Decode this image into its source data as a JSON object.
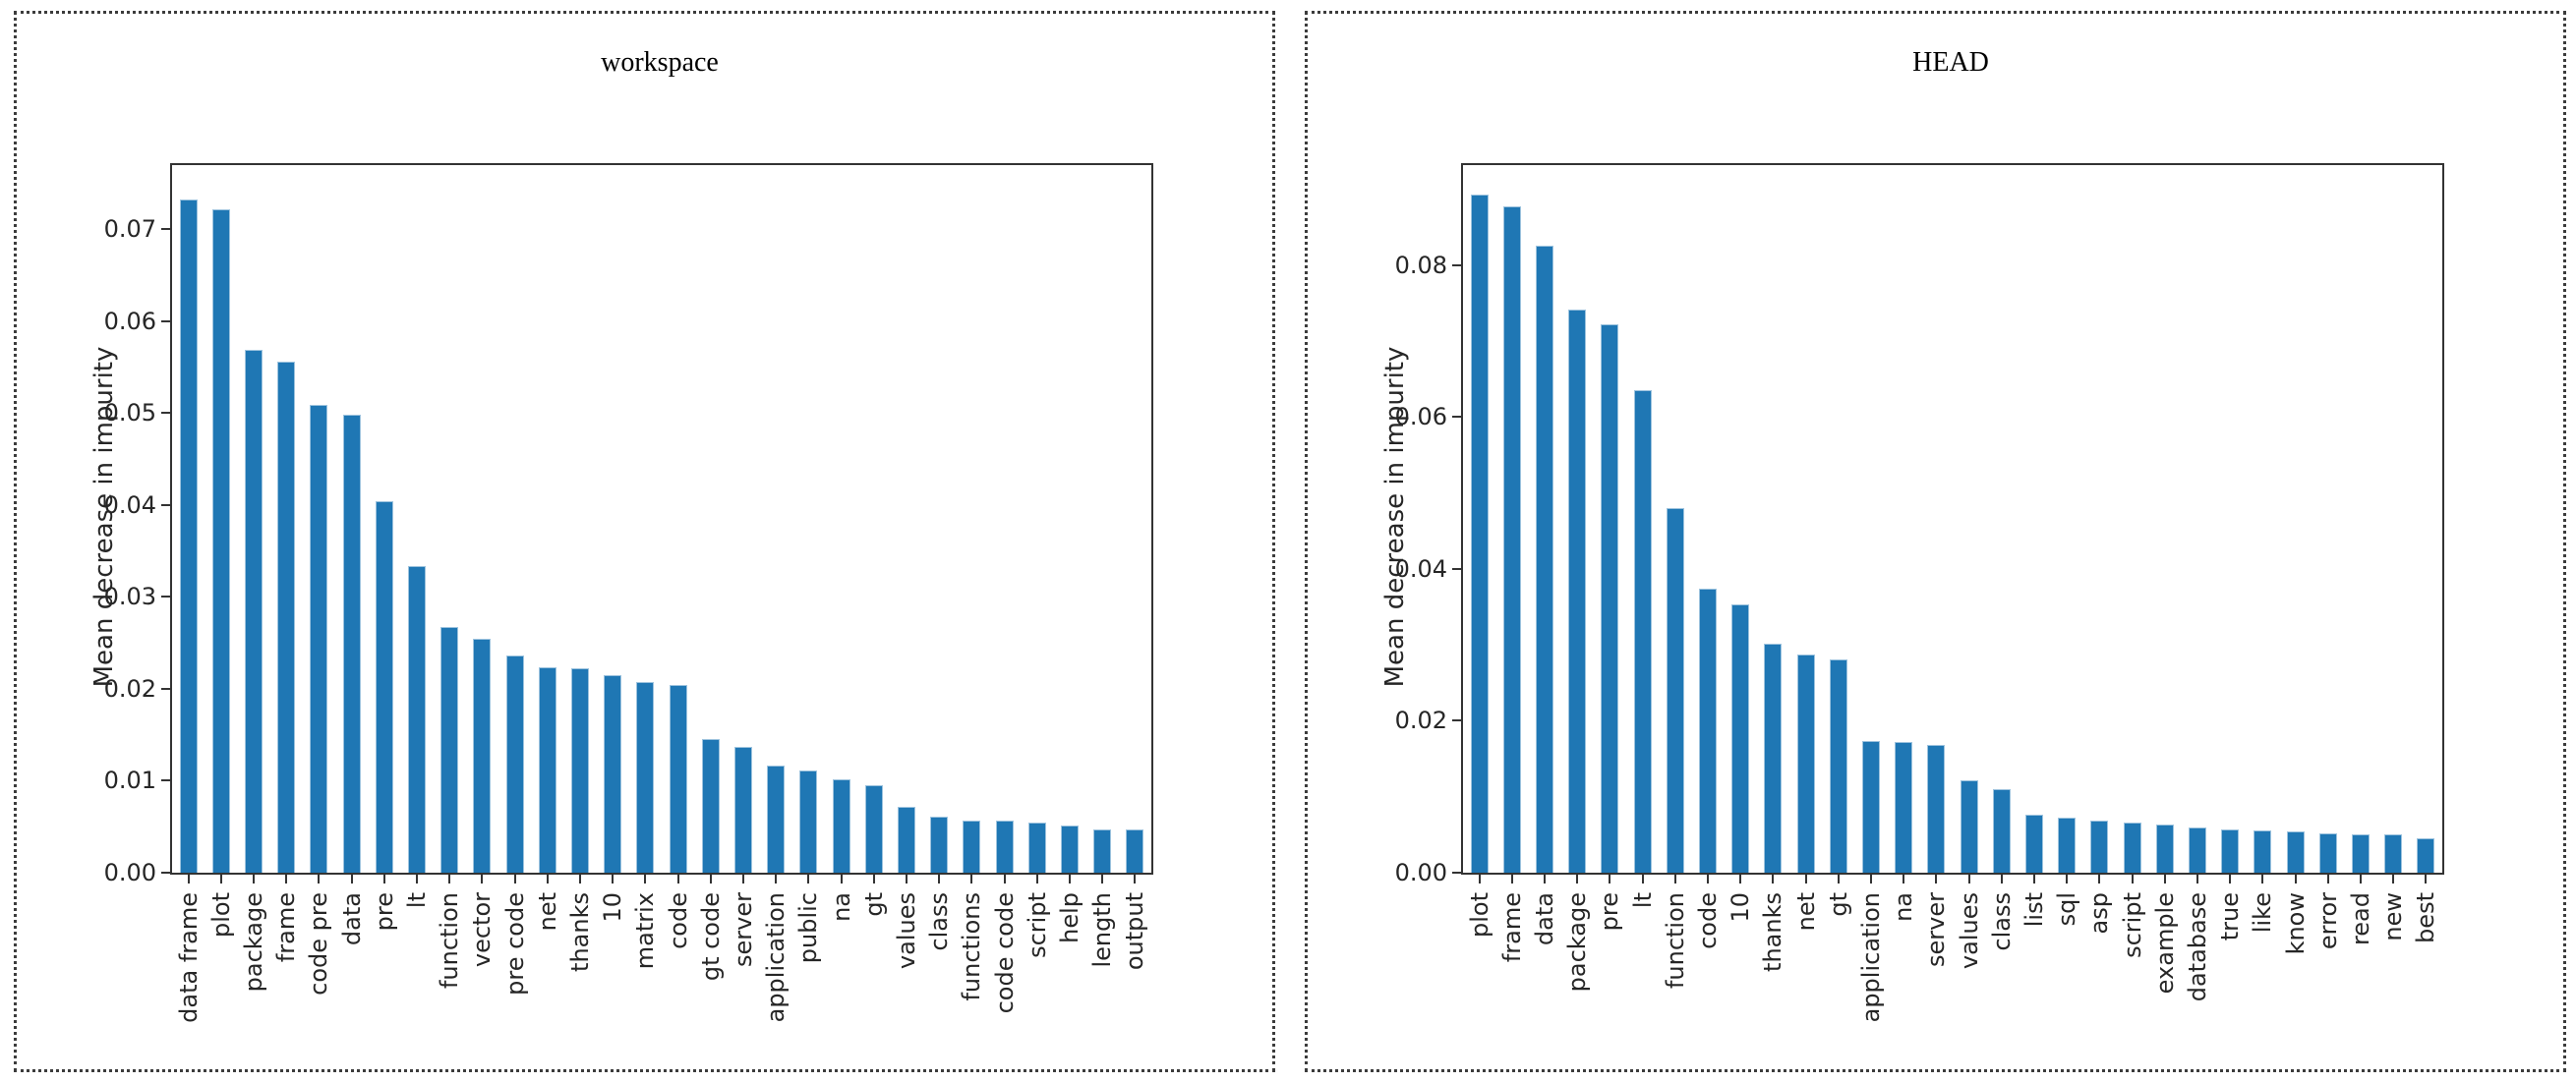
{
  "bar_color": "#1f77b4",
  "border_style": "dotted dark-gray panel frames",
  "chart_data": [
    {
      "type": "bar",
      "title": "workspace",
      "ylabel": "Mean decrease in impurity",
      "xlabel": "",
      "grid": false,
      "legend": "none",
      "ylim": [
        0,
        0.077
      ],
      "ytick_labels": [
        "0.00",
        "0.01",
        "0.02",
        "0.03",
        "0.04",
        "0.05",
        "0.06",
        "0.07"
      ],
      "ytick_values": [
        0,
        0.01,
        0.02,
        0.03,
        0.04,
        0.05,
        0.06,
        0.07
      ],
      "categories": [
        "data frame",
        "plot",
        "package",
        "frame",
        "code pre",
        "data",
        "pre",
        "lt",
        "function",
        "vector",
        "pre code",
        "net",
        "thanks",
        "10",
        "matrix",
        "code",
        "gt code",
        "server",
        "application",
        "public",
        "na",
        "gt",
        "values",
        "class",
        "functions",
        "code code",
        "script",
        "help",
        "length",
        "output"
      ],
      "values": [
        0.0733,
        0.0722,
        0.0569,
        0.0556,
        0.0509,
        0.0498,
        0.0404,
        0.0334,
        0.0267,
        0.0254,
        0.0236,
        0.0224,
        0.0222,
        0.0215,
        0.0208,
        0.0204,
        0.0145,
        0.0137,
        0.0117,
        0.0111,
        0.0102,
        0.0095,
        0.0072,
        0.0061,
        0.0057,
        0.0057,
        0.0055,
        0.0051,
        0.0047,
        0.0047
      ]
    },
    {
      "type": "bar",
      "title": "HEAD",
      "ylabel": "Mean decrease in impurity",
      "xlabel": "",
      "grid": false,
      "legend": "none",
      "ylim": [
        0,
        0.0932
      ],
      "ytick_labels": [
        "0.00",
        "0.02",
        "0.04",
        "0.06",
        "0.08"
      ],
      "ytick_values": [
        0,
        0.02,
        0.04,
        0.06,
        0.08
      ],
      "categories": [
        "plot",
        "frame",
        "data",
        "package",
        "pre",
        "lt",
        "function",
        "code",
        "10",
        "thanks",
        "net",
        "gt",
        "application",
        "na",
        "server",
        "values",
        "class",
        "list",
        "sql",
        "asp",
        "script",
        "example",
        "database",
        "true",
        "like",
        "know",
        "error",
        "read",
        "new",
        "best"
      ],
      "values": [
        0.0893,
        0.0878,
        0.0826,
        0.0742,
        0.0722,
        0.0636,
        0.048,
        0.0374,
        0.0353,
        0.0301,
        0.0288,
        0.0281,
        0.0174,
        0.0172,
        0.0168,
        0.0122,
        0.011,
        0.0076,
        0.0073,
        0.0068,
        0.0066,
        0.0063,
        0.0059,
        0.0057,
        0.0056,
        0.0054,
        0.0052,
        0.0051,
        0.0051,
        0.0045
      ]
    }
  ]
}
